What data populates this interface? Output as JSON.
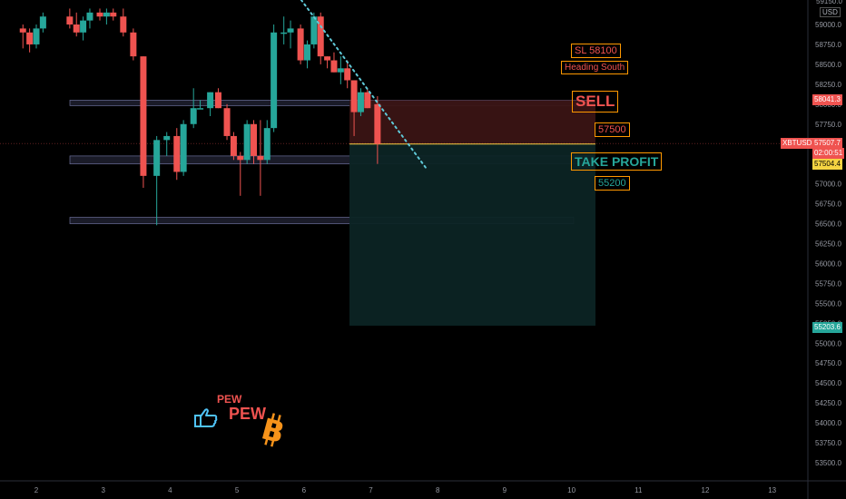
{
  "symbol": "XBTUSD",
  "axis": {
    "currency": "USD"
  },
  "annotations": {
    "sl": "SL 58100",
    "heading": "Heading South",
    "sell": "SELL",
    "entry": "57500",
    "take_profit": "TAKE PROFIT",
    "tp_value": "55200",
    "pew_small": "PEW",
    "pew_large": "PEW"
  },
  "price_tags": {
    "sl_tag": "58041.3",
    "current_price": "57507.7",
    "countdown": "02:00:51",
    "entry_tag": "57504.4",
    "tp_tag": "55203.6",
    "top_partial": "59150.0"
  },
  "colors": {
    "up": "#26a69a",
    "down": "#ef5350",
    "sell_accent": "#ff9800",
    "tp_accent": "#26a69a",
    "sl_zone": "#3a1414",
    "tp_zone": "#0c2424",
    "trendline": "#5fc9d8",
    "bitcoin": "#f7931a",
    "hand_icon": "#4fc3f7"
  },
  "icons": [
    "pointing-hand-icon",
    "bitcoin-icon"
  ],
  "chart_data": {
    "type": "candlestick",
    "x_ticks": [
      "2",
      "3",
      "4",
      "5",
      "6",
      "7",
      "8",
      "9",
      "10",
      "11",
      "12",
      "13"
    ],
    "y_ticks": [
      59000,
      58750,
      58500,
      58250,
      58000,
      57750,
      57500,
      57250,
      57000,
      56750,
      56500,
      56250,
      56000,
      55750,
      55500,
      55250,
      55000,
      54750,
      54500,
      54250,
      54000,
      53750,
      53500
    ],
    "ylim": [
      53400,
      59200
    ],
    "candles": [
      {
        "t": 1.8,
        "o": 58950,
        "h": 59000,
        "l": 58700,
        "c": 58900
      },
      {
        "t": 1.9,
        "o": 58900,
        "h": 58950,
        "l": 58650,
        "c": 58750
      },
      {
        "t": 2.0,
        "o": 58750,
        "h": 59000,
        "l": 58700,
        "c": 58950
      },
      {
        "t": 2.1,
        "o": 58950,
        "h": 59150,
        "l": 58900,
        "c": 59100
      },
      {
        "t": 2.5,
        "o": 59100,
        "h": 59200,
        "l": 58950,
        "c": 59000
      },
      {
        "t": 2.6,
        "o": 59000,
        "h": 59150,
        "l": 58850,
        "c": 58900
      },
      {
        "t": 2.7,
        "o": 58900,
        "h": 59100,
        "l": 58800,
        "c": 59050
      },
      {
        "t": 2.8,
        "o": 59050,
        "h": 59200,
        "l": 58950,
        "c": 59150
      },
      {
        "t": 2.95,
        "o": 59150,
        "h": 59200,
        "l": 59050,
        "c": 59100
      },
      {
        "t": 3.05,
        "o": 59100,
        "h": 59200,
        "l": 59000,
        "c": 59150
      },
      {
        "t": 3.15,
        "o": 59150,
        "h": 59200,
        "l": 59050,
        "c": 59100
      },
      {
        "t": 3.3,
        "o": 59100,
        "h": 59200,
        "l": 58850,
        "c": 58900
      },
      {
        "t": 3.45,
        "o": 58900,
        "h": 58950,
        "l": 58550,
        "c": 58600
      },
      {
        "t": 3.6,
        "o": 58600,
        "h": 58600,
        "l": 56950,
        "c": 57100
      },
      {
        "t": 3.8,
        "o": 57100,
        "h": 57600,
        "l": 56480,
        "c": 57550
      },
      {
        "t": 3.95,
        "o": 57550,
        "h": 57650,
        "l": 57350,
        "c": 57600
      },
      {
        "t": 4.1,
        "o": 57600,
        "h": 57700,
        "l": 57050,
        "c": 57150
      },
      {
        "t": 4.2,
        "o": 57150,
        "h": 57800,
        "l": 57100,
        "c": 57750
      },
      {
        "t": 4.35,
        "o": 57750,
        "h": 58200,
        "l": 57700,
        "c": 57950
      },
      {
        "t": 4.45,
        "o": 57950,
        "h": 58050,
        "l": 57950,
        "c": 57950
      },
      {
        "t": 4.6,
        "o": 57950,
        "h": 58150,
        "l": 57850,
        "c": 58150
      },
      {
        "t": 4.72,
        "o": 58150,
        "h": 58200,
        "l": 57950,
        "c": 57950
      },
      {
        "t": 4.85,
        "o": 57950,
        "h": 58000,
        "l": 57550,
        "c": 57600
      },
      {
        "t": 4.95,
        "o": 57600,
        "h": 57650,
        "l": 57300,
        "c": 57350
      },
      {
        "t": 5.05,
        "o": 57350,
        "h": 57400,
        "l": 56850,
        "c": 57300
      },
      {
        "t": 5.15,
        "o": 57300,
        "h": 57800,
        "l": 57250,
        "c": 57750
      },
      {
        "t": 5.25,
        "o": 57750,
        "h": 57800,
        "l": 57250,
        "c": 57350
      },
      {
        "t": 5.35,
        "o": 57350,
        "h": 57800,
        "l": 56850,
        "c": 57300
      },
      {
        "t": 5.45,
        "o": 57300,
        "h": 57800,
        "l": 57250,
        "c": 57700
      },
      {
        "t": 5.55,
        "o": 57700,
        "h": 59000,
        "l": 57650,
        "c": 58900
      },
      {
        "t": 5.7,
        "o": 58900,
        "h": 59100,
        "l": 58750,
        "c": 58900
      },
      {
        "t": 5.8,
        "o": 58900,
        "h": 59050,
        "l": 58700,
        "c": 58950
      },
      {
        "t": 5.95,
        "o": 58950,
        "h": 59000,
        "l": 58500,
        "c": 58550
      },
      {
        "t": 6.05,
        "o": 58550,
        "h": 58800,
        "l": 58450,
        "c": 58750
      },
      {
        "t": 6.15,
        "o": 58750,
        "h": 59150,
        "l": 58700,
        "c": 59100
      },
      {
        "t": 6.25,
        "o": 59100,
        "h": 59150,
        "l": 58500,
        "c": 58600
      },
      {
        "t": 6.35,
        "o": 58600,
        "h": 58600,
        "l": 58450,
        "c": 58550
      },
      {
        "t": 6.45,
        "o": 58550,
        "h": 58650,
        "l": 58400,
        "c": 58400
      },
      {
        "t": 6.55,
        "o": 58400,
        "h": 58600,
        "l": 58250,
        "c": 58450
      },
      {
        "t": 6.65,
        "o": 58450,
        "h": 58550,
        "l": 58200,
        "c": 58300
      },
      {
        "t": 6.75,
        "o": 58300,
        "h": 58300,
        "l": 57600,
        "c": 57900
      },
      {
        "t": 6.85,
        "o": 57900,
        "h": 58200,
        "l": 57850,
        "c": 58150
      },
      {
        "t": 6.95,
        "o": 58150,
        "h": 58200,
        "l": 57950,
        "c": 57950
      },
      {
        "t": 7.1,
        "o": 58000,
        "h": 58100,
        "l": 57250,
        "c": 57500
      }
    ],
    "zones": [
      {
        "from": 2.5,
        "to": 8.0,
        "low": 58000,
        "high": 58050
      },
      {
        "from": 2.5,
        "to": 8.0,
        "low": 57250,
        "high": 57350
      },
      {
        "from": 2.5,
        "to": 8.0,
        "low": 56500,
        "high": 56580
      }
    ],
    "position": {
      "start": 7.0,
      "end": 10.7,
      "entry": 57500,
      "stop": 58050,
      "target": 55220
    },
    "trendline": {
      "from": [
        6.0,
        59150
      ],
      "to": [
        8.1,
        57400
      ]
    }
  }
}
